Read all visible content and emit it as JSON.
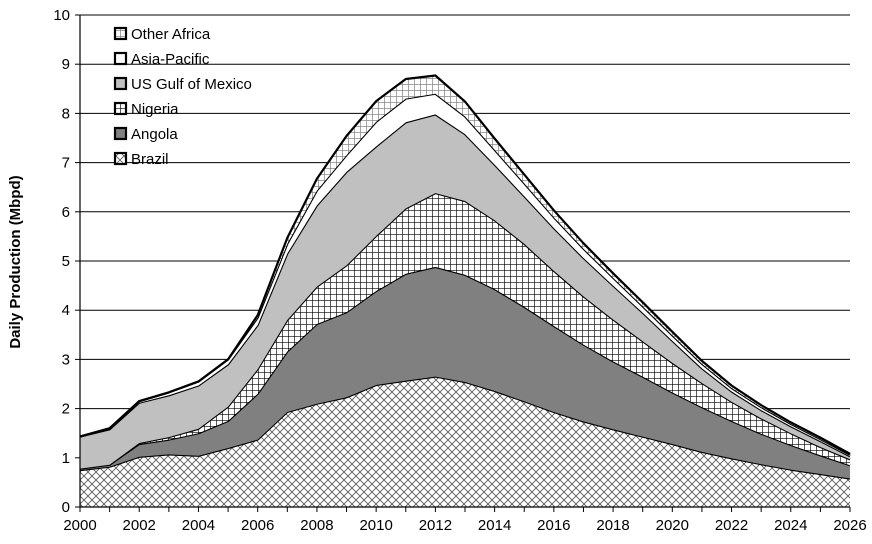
{
  "chart_data": {
    "type": "area",
    "stacked": true,
    "title": "",
    "xlabel": "",
    "ylabel": "Daily Production (Mbpd)",
    "xlim": [
      2000,
      2026
    ],
    "ylim": [
      0,
      10
    ],
    "x_ticks": [
      2000,
      2002,
      2004,
      2006,
      2008,
      2010,
      2012,
      2014,
      2016,
      2018,
      2020,
      2022,
      2024,
      2026
    ],
    "y_ticks": [
      0,
      1,
      2,
      3,
      4,
      5,
      6,
      7,
      8,
      9,
      10
    ],
    "grid": "horizontal",
    "legend_position": "top-left",
    "x": [
      2000,
      2001,
      2002,
      2003,
      2004,
      2005,
      2006,
      2007,
      2008,
      2009,
      2010,
      2011,
      2012,
      2013,
      2014,
      2015,
      2016,
      2017,
      2018,
      2019,
      2020,
      2021,
      2022,
      2023,
      2024,
      2025,
      2026
    ],
    "series": [
      {
        "name": "Brazil",
        "fill": "crosshatch",
        "values": [
          0.75,
          0.82,
          1.02,
          1.07,
          1.04,
          1.2,
          1.37,
          1.93,
          2.1,
          2.23,
          2.48,
          2.57,
          2.65,
          2.54,
          2.36,
          2.15,
          1.93,
          1.74,
          1.58,
          1.43,
          1.28,
          1.12,
          0.99,
          0.87,
          0.76,
          0.67,
          0.58
        ]
      },
      {
        "name": "Angola",
        "fill": "#808080",
        "values": [
          0.03,
          0.04,
          0.26,
          0.3,
          0.46,
          0.55,
          0.93,
          1.23,
          1.62,
          1.73,
          1.91,
          2.17,
          2.23,
          2.18,
          2.07,
          1.92,
          1.75,
          1.56,
          1.38,
          1.22,
          1.05,
          0.91,
          0.76,
          0.62,
          0.5,
          0.38,
          0.27
        ]
      },
      {
        "name": "Nigeria",
        "fill": "grid",
        "values": [
          0.0,
          0.0,
          0.02,
          0.05,
          0.09,
          0.29,
          0.5,
          0.64,
          0.76,
          0.95,
          1.12,
          1.33,
          1.5,
          1.5,
          1.4,
          1.28,
          1.12,
          0.98,
          0.85,
          0.72,
          0.6,
          0.49,
          0.39,
          0.31,
          0.24,
          0.17,
          0.12
        ]
      },
      {
        "name": "US Gulf of Mexico",
        "fill": "#c0c0c0",
        "values": [
          0.65,
          0.72,
          0.82,
          0.85,
          0.88,
          0.86,
          0.9,
          1.35,
          1.65,
          1.9,
          1.82,
          1.75,
          1.6,
          1.36,
          1.13,
          0.97,
          0.87,
          0.78,
          0.69,
          0.58,
          0.45,
          0.3,
          0.21,
          0.17,
          0.14,
          0.12,
          0.06
        ]
      },
      {
        "name": "Asia-Pacific",
        "fill": "#ffffff",
        "values": [
          0.0,
          0.02,
          0.03,
          0.06,
          0.08,
          0.1,
          0.15,
          0.2,
          0.3,
          0.34,
          0.5,
          0.48,
          0.42,
          0.36,
          0.3,
          0.26,
          0.22,
          0.19,
          0.16,
          0.13,
          0.11,
          0.09,
          0.07,
          0.06,
          0.05,
          0.04,
          0.03
        ]
      },
      {
        "name": "Other Africa",
        "fill": "grid-light",
        "values": [
          0.0,
          0.0,
          0.0,
          0.0,
          0.0,
          0.0,
          0.05,
          0.12,
          0.24,
          0.39,
          0.42,
          0.4,
          0.37,
          0.3,
          0.23,
          0.18,
          0.14,
          0.11,
          0.09,
          0.08,
          0.07,
          0.06,
          0.05,
          0.04,
          0.03,
          0.03,
          0.02
        ]
      }
    ]
  }
}
